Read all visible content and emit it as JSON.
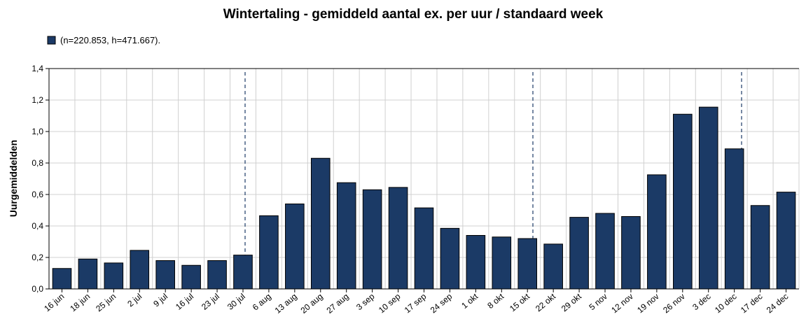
{
  "chart_data": {
    "type": "bar",
    "title": "Wintertaling - gemiddeld aantal ex. per uur / standaard week",
    "ylabel": "Uurgemiddelden",
    "categories": [
      "16 jun",
      "18 jun",
      "25 jun",
      "2 jul",
      "9 jul",
      "16 jul",
      "23 jul",
      "30 jul",
      "6 aug",
      "13 aug",
      "20 aug",
      "27 aug",
      "3 sep",
      "10 sep",
      "17 sep",
      "24 sep",
      "1 okt",
      "8 okt",
      "15 okt",
      "22 okt",
      "29 okt",
      "5 nov",
      "12 nov",
      "19 nov",
      "26 nov",
      "3 dec",
      "10 dec",
      "17 dec",
      "24 dec"
    ],
    "series": [
      {
        "name": "(n=220.853, h=471.667).",
        "color": "#1b3a66",
        "values": [
          0.13,
          0.19,
          0.165,
          0.245,
          0.18,
          0.15,
          0.18,
          0.215,
          0.465,
          0.54,
          0.83,
          0.675,
          0.63,
          0.645,
          0.515,
          0.385,
          0.34,
          0.33,
          0.32,
          0.285,
          0.455,
          0.48,
          0.46,
          0.725,
          1.11,
          1.155,
          0.89,
          0.53,
          0.615
        ]
      }
    ],
    "ylim": [
      0,
      1.4
    ],
    "yticks": [
      {
        "value": 0,
        "label": "0,0"
      },
      {
        "value": 0.2,
        "label": "0,2"
      },
      {
        "value": 0.4,
        "label": "0,4"
      },
      {
        "value": 0.6,
        "label": "0,6"
      },
      {
        "value": 0.8,
        "label": "0,8"
      },
      {
        "value": 1.0,
        "label": "1,0"
      },
      {
        "value": 1.2,
        "label": "1,2"
      },
      {
        "value": 1.4,
        "label": "1,4"
      }
    ],
    "grid": true
  }
}
